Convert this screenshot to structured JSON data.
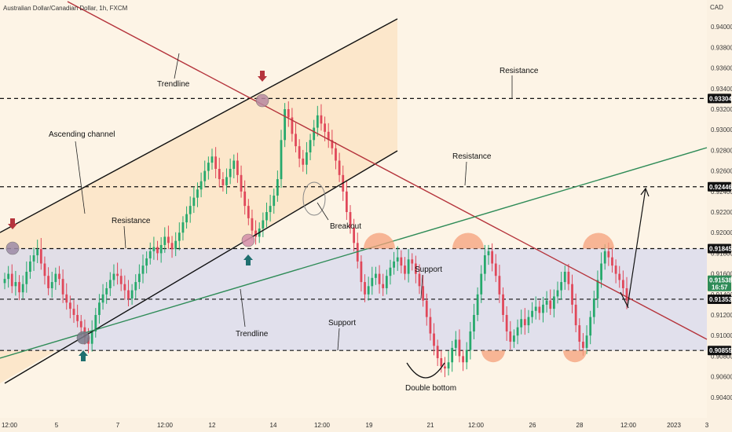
{
  "title": "Australian Dollar/Canadian Dollar, 1h, FXCM",
  "currency_label": "CAD",
  "chart_data": {
    "type": "candlestick",
    "y_axis": {
      "ylim": [
        0.902,
        0.942
      ],
      "ticks": [
        0.904,
        0.906,
        0.908,
        0.91,
        0.912,
        0.914,
        0.916,
        0.918,
        0.92,
        0.922,
        0.924,
        0.926,
        0.928,
        0.93,
        0.932,
        0.934,
        0.936,
        0.938,
        0.94
      ],
      "tick_labels": [
        "0.90400",
        "0.90600",
        "0.90800",
        "0.91000",
        "0.91200",
        "0.91400",
        "0.91600",
        "0.91800",
        "0.92000",
        "0.92200",
        "0.92400",
        "0.92600",
        "0.92800",
        "0.93000",
        "0.93200",
        "0.93400",
        "0.93600",
        "0.93800",
        "0.94000"
      ]
    },
    "x_axis": {
      "tick_labels": [
        "12:00",
        "5",
        "7",
        "12:00",
        "12",
        "14",
        "12:00",
        "19",
        "21",
        "12:00",
        "26",
        "28",
        "12:00",
        "2023",
        "3"
      ]
    },
    "price_levels": [
      {
        "label": "0.93304",
        "price": 0.93304
      },
      {
        "label": "0.92446",
        "price": 0.92446
      },
      {
        "label": "0.91845",
        "price": 0.91845
      },
      {
        "label": "0.91353",
        "price": 0.91353
      },
      {
        "label": "0.90855",
        "price": 0.90855
      }
    ],
    "current_price": {
      "label": "0.91538",
      "countdown": "16:57",
      "price": 0.91538
    },
    "series": [
      {
        "close": [
          0.9155,
          0.916,
          0.9148,
          0.9152,
          0.9142,
          0.915,
          0.9162,
          0.9172,
          0.9178,
          0.9184,
          0.917,
          0.9158,
          0.9146,
          0.9152,
          0.916,
          0.9155,
          0.914,
          0.9132,
          0.9126,
          0.912,
          0.9114,
          0.9108,
          0.9098,
          0.9092,
          0.9104,
          0.912,
          0.9132,
          0.914,
          0.9146,
          0.9154,
          0.916,
          0.9158,
          0.915,
          0.9144,
          0.9136,
          0.9144,
          0.9152,
          0.916,
          0.9168,
          0.9175,
          0.9182,
          0.9186,
          0.918,
          0.9188,
          0.9196,
          0.919,
          0.9184,
          0.9192,
          0.92,
          0.921,
          0.9218,
          0.9226,
          0.9234,
          0.9242,
          0.925,
          0.926,
          0.9268,
          0.9274,
          0.9262,
          0.9252,
          0.9246,
          0.9254,
          0.9262,
          0.927,
          0.9256,
          0.924,
          0.9226,
          0.9214,
          0.9202,
          0.9196,
          0.9204,
          0.9212,
          0.922,
          0.9226,
          0.9236,
          0.9252,
          0.929,
          0.932,
          0.9312,
          0.9296,
          0.9284,
          0.9272,
          0.9266,
          0.9278,
          0.929,
          0.9302,
          0.9314,
          0.9306,
          0.9298,
          0.929,
          0.9282,
          0.927,
          0.9256,
          0.924,
          0.922,
          0.9205,
          0.919,
          0.9172,
          0.9152,
          0.914,
          0.9148,
          0.9156,
          0.916,
          0.915,
          0.9146,
          0.9158,
          0.9166,
          0.9172,
          0.9176,
          0.9168,
          0.916,
          0.9174,
          0.917,
          0.916,
          0.9148,
          0.9134,
          0.9118,
          0.9102,
          0.909,
          0.9078,
          0.907,
          0.9068,
          0.9074,
          0.9088,
          0.9096,
          0.908,
          0.9074,
          0.9086,
          0.9104,
          0.912,
          0.914,
          0.916,
          0.9178,
          0.9182,
          0.917,
          0.9158,
          0.914,
          0.912,
          0.9104,
          0.9094,
          0.91,
          0.9108,
          0.9116,
          0.911,
          0.9118,
          0.9124,
          0.9128,
          0.9122,
          0.913,
          0.9134,
          0.9126,
          0.9138,
          0.9144,
          0.9152,
          0.9162,
          0.915,
          0.913,
          0.911,
          0.9094,
          0.9088,
          0.91,
          0.9118,
          0.9136,
          0.9154,
          0.917,
          0.9182,
          0.9176,
          0.9168,
          0.916,
          0.9154,
          0.9146,
          0.9134
        ]
      }
    ],
    "annotations": [
      {
        "text": "Trendline"
      },
      {
        "text": "Ascending channel"
      },
      {
        "text": "Resistance"
      },
      {
        "text": "Resistance"
      },
      {
        "text": "Resistance"
      },
      {
        "text": "Breakout"
      },
      {
        "text": "Support"
      },
      {
        "text": "Support"
      },
      {
        "text": "Trendline"
      },
      {
        "text": "Double bottom"
      }
    ],
    "grid": false,
    "colors": {
      "up": "#26a96c",
      "down": "#e0485a",
      "channel_fill": "#fbe3c2",
      "support_band": "#dcdcec",
      "trendline_red": "#b5343c",
      "trendline_green": "#2e8b57",
      "marker_red": "#b5343c",
      "marker_teal": "#1f6f6f",
      "semi_circle": "#f4a07a"
    }
  }
}
